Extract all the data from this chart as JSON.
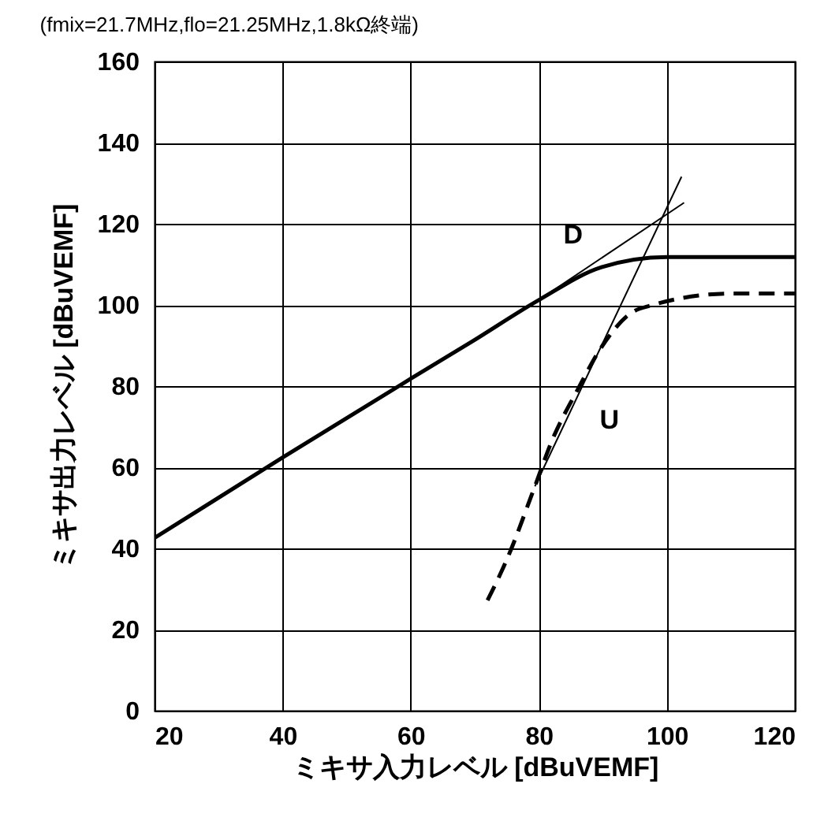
{
  "chart_data": {
    "type": "line",
    "subtitle": "(fmix=21.7MHz,flo=21.25MHz,1.8kΩ終端)",
    "xlabel": "ミキサ入力レベル [dBuVEMF]",
    "ylabel": "ミキサ出力レベル [dBuVEMF]",
    "xlim": [
      20,
      120
    ],
    "xticks": [
      20,
      40,
      60,
      80,
      100,
      120
    ],
    "ylim": [
      0,
      160
    ],
    "yticks": [
      0,
      20,
      40,
      60,
      80,
      100,
      120,
      140,
      160
    ],
    "grid": true,
    "marker": "none",
    "series": [
      {
        "name": "D",
        "color": "#000000",
        "line_style": "solid",
        "x": [
          20,
          40,
          60,
          69.7,
          80,
          89.8,
          100,
          120
        ],
        "values": [
          42.6,
          62.4,
          81.8,
          91.1,
          101.2,
          109.3,
          111.8,
          111.8
        ]
      },
      {
        "name": "U",
        "color": "#000000",
        "line_style": "dashed",
        "x": [
          72,
          75,
          79.4,
          82,
          86.1,
          89.8,
          94.4,
          97.6,
          110,
          120
        ],
        "values": [
          27.2,
          37.2,
          55.3,
          66.3,
          79.2,
          89.6,
          98,
          99.9,
          102.8,
          102.8
        ]
      },
      {
        "type": "line",
        "color": "#000000",
        "line_style": "solid",
        "x": [
          80,
          102.7
        ],
        "values": [
          101.2,
          125.2
        ]
      },
      {
        "type": "line",
        "color": "#000000",
        "line_style": "solid",
        "x": [
          79.4,
          102.3
        ],
        "values": [
          55.3,
          131.6
        ]
      }
    ]
  }
}
